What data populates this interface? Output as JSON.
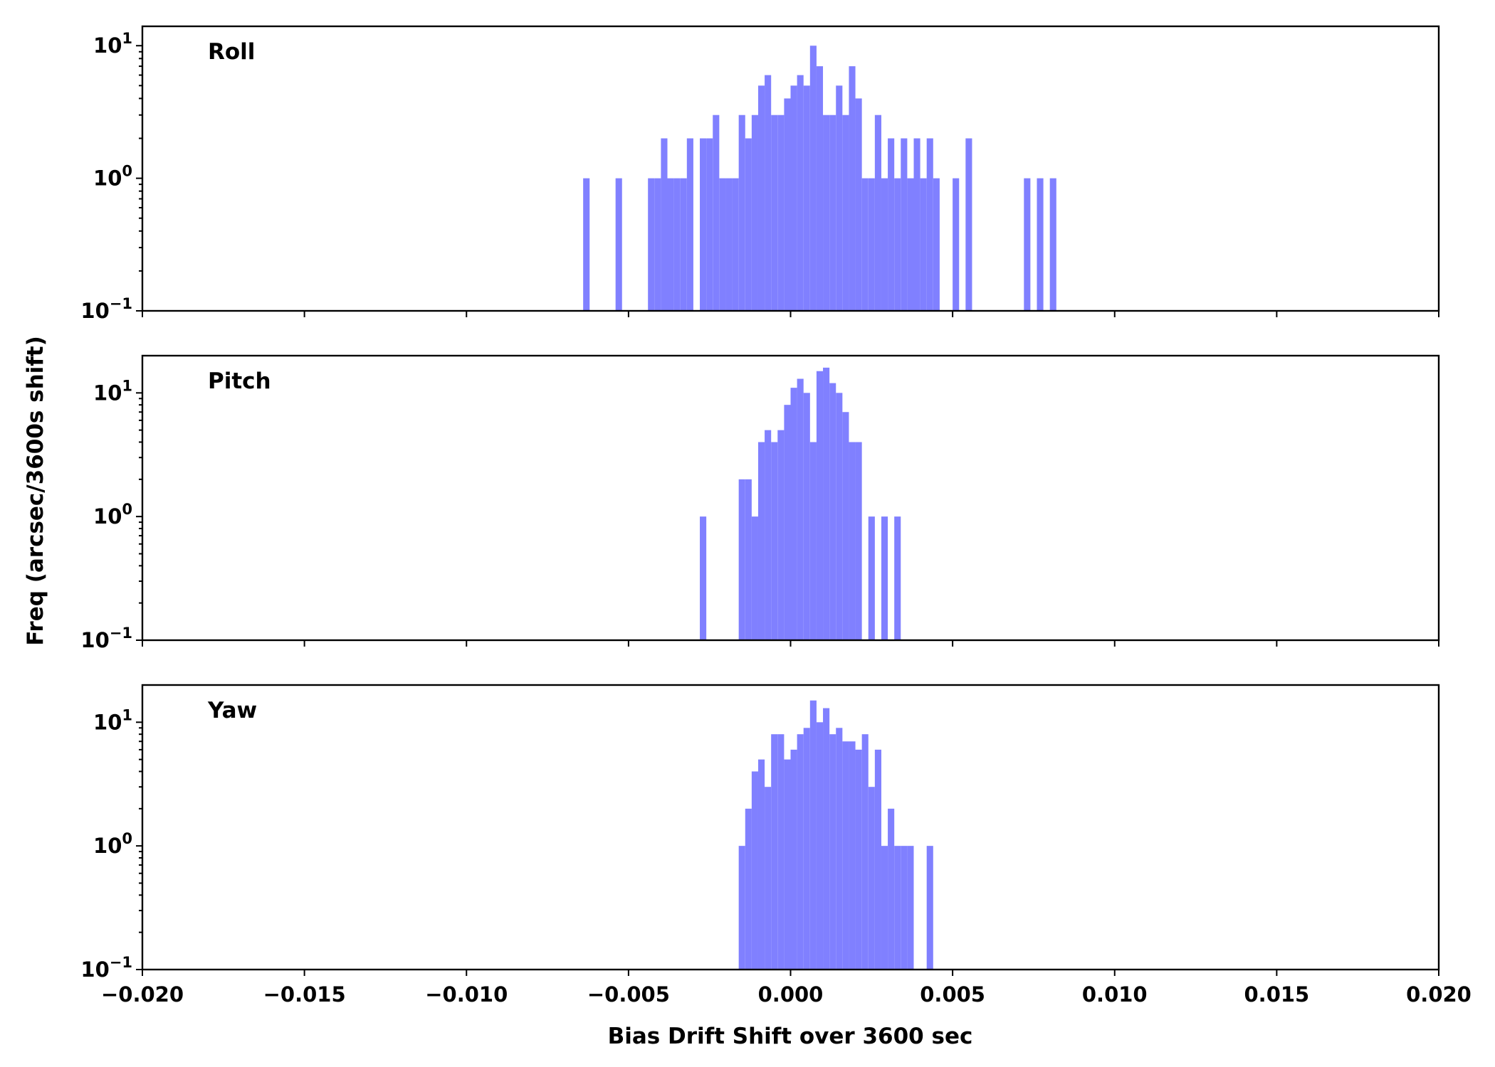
{
  "chart_data": [
    {
      "type": "bar",
      "title": "Roll",
      "yscale": "log",
      "ylim": [
        0.1,
        14
      ],
      "xlim": [
        -0.02,
        0.02
      ],
      "bin_width": 0.0002,
      "bars": [
        {
          "x": -0.0063,
          "y": 1
        },
        {
          "x": -0.0053,
          "y": 1
        },
        {
          "x": -0.0043,
          "y": 1
        },
        {
          "x": -0.0041,
          "y": 1
        },
        {
          "x": -0.0039,
          "y": 2
        },
        {
          "x": -0.0037,
          "y": 1
        },
        {
          "x": -0.0035,
          "y": 1
        },
        {
          "x": -0.0033,
          "y": 1
        },
        {
          "x": -0.0031,
          "y": 2
        },
        {
          "x": -0.0027,
          "y": 2
        },
        {
          "x": -0.0025,
          "y": 2
        },
        {
          "x": -0.0023,
          "y": 3
        },
        {
          "x": -0.0021,
          "y": 1
        },
        {
          "x": -0.0019,
          "y": 1
        },
        {
          "x": -0.0017,
          "y": 1
        },
        {
          "x": -0.0015,
          "y": 3
        },
        {
          "x": -0.0013,
          "y": 2
        },
        {
          "x": -0.0011,
          "y": 3
        },
        {
          "x": -0.0009,
          "y": 5
        },
        {
          "x": -0.0007,
          "y": 6
        },
        {
          "x": -0.0005,
          "y": 3
        },
        {
          "x": -0.0003,
          "y": 3
        },
        {
          "x": -0.0001,
          "y": 4
        },
        {
          "x": 0.0001,
          "y": 5
        },
        {
          "x": 0.0003,
          "y": 6
        },
        {
          "x": 0.0005,
          "y": 5
        },
        {
          "x": 0.0007,
          "y": 10
        },
        {
          "x": 0.0009,
          "y": 7
        },
        {
          "x": 0.0011,
          "y": 3
        },
        {
          "x": 0.0013,
          "y": 3
        },
        {
          "x": 0.0015,
          "y": 5
        },
        {
          "x": 0.0017,
          "y": 3
        },
        {
          "x": 0.0019,
          "y": 7
        },
        {
          "x": 0.0021,
          "y": 4
        },
        {
          "x": 0.0023,
          "y": 1
        },
        {
          "x": 0.0025,
          "y": 1
        },
        {
          "x": 0.0027,
          "y": 3
        },
        {
          "x": 0.0029,
          "y": 1
        },
        {
          "x": 0.0031,
          "y": 2
        },
        {
          "x": 0.0033,
          "y": 1
        },
        {
          "x": 0.0035,
          "y": 2
        },
        {
          "x": 0.0037,
          "y": 1
        },
        {
          "x": 0.0039,
          "y": 2
        },
        {
          "x": 0.0041,
          "y": 1
        },
        {
          "x": 0.0043,
          "y": 2
        },
        {
          "x": 0.0045,
          "y": 1
        },
        {
          "x": 0.0051,
          "y": 1
        },
        {
          "x": 0.0055,
          "y": 2
        },
        {
          "x": 0.0073,
          "y": 1
        },
        {
          "x": 0.0077,
          "y": 1
        },
        {
          "x": 0.0081,
          "y": 1
        }
      ]
    },
    {
      "type": "bar",
      "title": "Pitch",
      "yscale": "log",
      "ylim": [
        0.1,
        20
      ],
      "xlim": [
        -0.02,
        0.02
      ],
      "bin_width": 0.0002,
      "bars": [
        {
          "x": -0.0027,
          "y": 1
        },
        {
          "x": -0.0015,
          "y": 2
        },
        {
          "x": -0.0013,
          "y": 2
        },
        {
          "x": -0.0011,
          "y": 1
        },
        {
          "x": -0.0009,
          "y": 4
        },
        {
          "x": -0.0007,
          "y": 5
        },
        {
          "x": -0.0005,
          "y": 4
        },
        {
          "x": -0.0003,
          "y": 5
        },
        {
          "x": -0.0001,
          "y": 8
        },
        {
          "x": 0.0001,
          "y": 11
        },
        {
          "x": 0.0003,
          "y": 13
        },
        {
          "x": 0.0005,
          "y": 10
        },
        {
          "x": 0.0007,
          "y": 4
        },
        {
          "x": 0.0009,
          "y": 15
        },
        {
          "x": 0.0011,
          "y": 16
        },
        {
          "x": 0.0013,
          "y": 12
        },
        {
          "x": 0.0015,
          "y": 10
        },
        {
          "x": 0.0017,
          "y": 7
        },
        {
          "x": 0.0019,
          "y": 4
        },
        {
          "x": 0.0021,
          "y": 4
        },
        {
          "x": 0.0025,
          "y": 1
        },
        {
          "x": 0.0029,
          "y": 1
        },
        {
          "x": 0.0033,
          "y": 1
        }
      ]
    },
    {
      "type": "bar",
      "title": "Yaw",
      "yscale": "log",
      "ylim": [
        0.1,
        20
      ],
      "xlim": [
        -0.02,
        0.02
      ],
      "bin_width": 0.0002,
      "bars": [
        {
          "x": -0.0015,
          "y": 1
        },
        {
          "x": -0.0013,
          "y": 2
        },
        {
          "x": -0.0011,
          "y": 4
        },
        {
          "x": -0.0009,
          "y": 5
        },
        {
          "x": -0.0007,
          "y": 3
        },
        {
          "x": -0.0005,
          "y": 8
        },
        {
          "x": -0.0003,
          "y": 8
        },
        {
          "x": -0.0001,
          "y": 5
        },
        {
          "x": 0.0001,
          "y": 6
        },
        {
          "x": 0.0003,
          "y": 8
        },
        {
          "x": 0.0005,
          "y": 9
        },
        {
          "x": 0.0007,
          "y": 15
        },
        {
          "x": 0.0009,
          "y": 10
        },
        {
          "x": 0.0011,
          "y": 13
        },
        {
          "x": 0.0013,
          "y": 8
        },
        {
          "x": 0.0015,
          "y": 9
        },
        {
          "x": 0.0017,
          "y": 7
        },
        {
          "x": 0.0019,
          "y": 7
        },
        {
          "x": 0.0021,
          "y": 6
        },
        {
          "x": 0.0023,
          "y": 8
        },
        {
          "x": 0.0025,
          "y": 3
        },
        {
          "x": 0.0027,
          "y": 6
        },
        {
          "x": 0.0029,
          "y": 1
        },
        {
          "x": 0.0031,
          "y": 2
        },
        {
          "x": 0.0033,
          "y": 1
        },
        {
          "x": 0.0035,
          "y": 1
        },
        {
          "x": 0.0037,
          "y": 1
        },
        {
          "x": 0.0043,
          "y": 1
        }
      ]
    }
  ],
  "axes": {
    "xlabel": "Bias Drift Shift over 3600 sec",
    "ylabel": "Freq (arcsec/3600s shift)",
    "x_ticks": [
      -0.02,
      -0.015,
      -0.01,
      -0.005,
      0.0,
      0.005,
      0.01,
      0.015,
      0.02
    ],
    "x_tick_labels": [
      "−0.020",
      "−0.015",
      "−0.010",
      "−0.005",
      "0.000",
      "0.005",
      "0.010",
      "0.015",
      "0.020"
    ],
    "y_ticks": [
      {
        "value": 10,
        "base": "10",
        "exp": "1"
      },
      {
        "value": 1,
        "base": "10",
        "exp": "0"
      },
      {
        "value": 0.1,
        "base": "10",
        "exp": "−1"
      }
    ]
  },
  "colors": {
    "bar": "#8080ff",
    "axis": "#000000",
    "background": "#ffffff"
  }
}
